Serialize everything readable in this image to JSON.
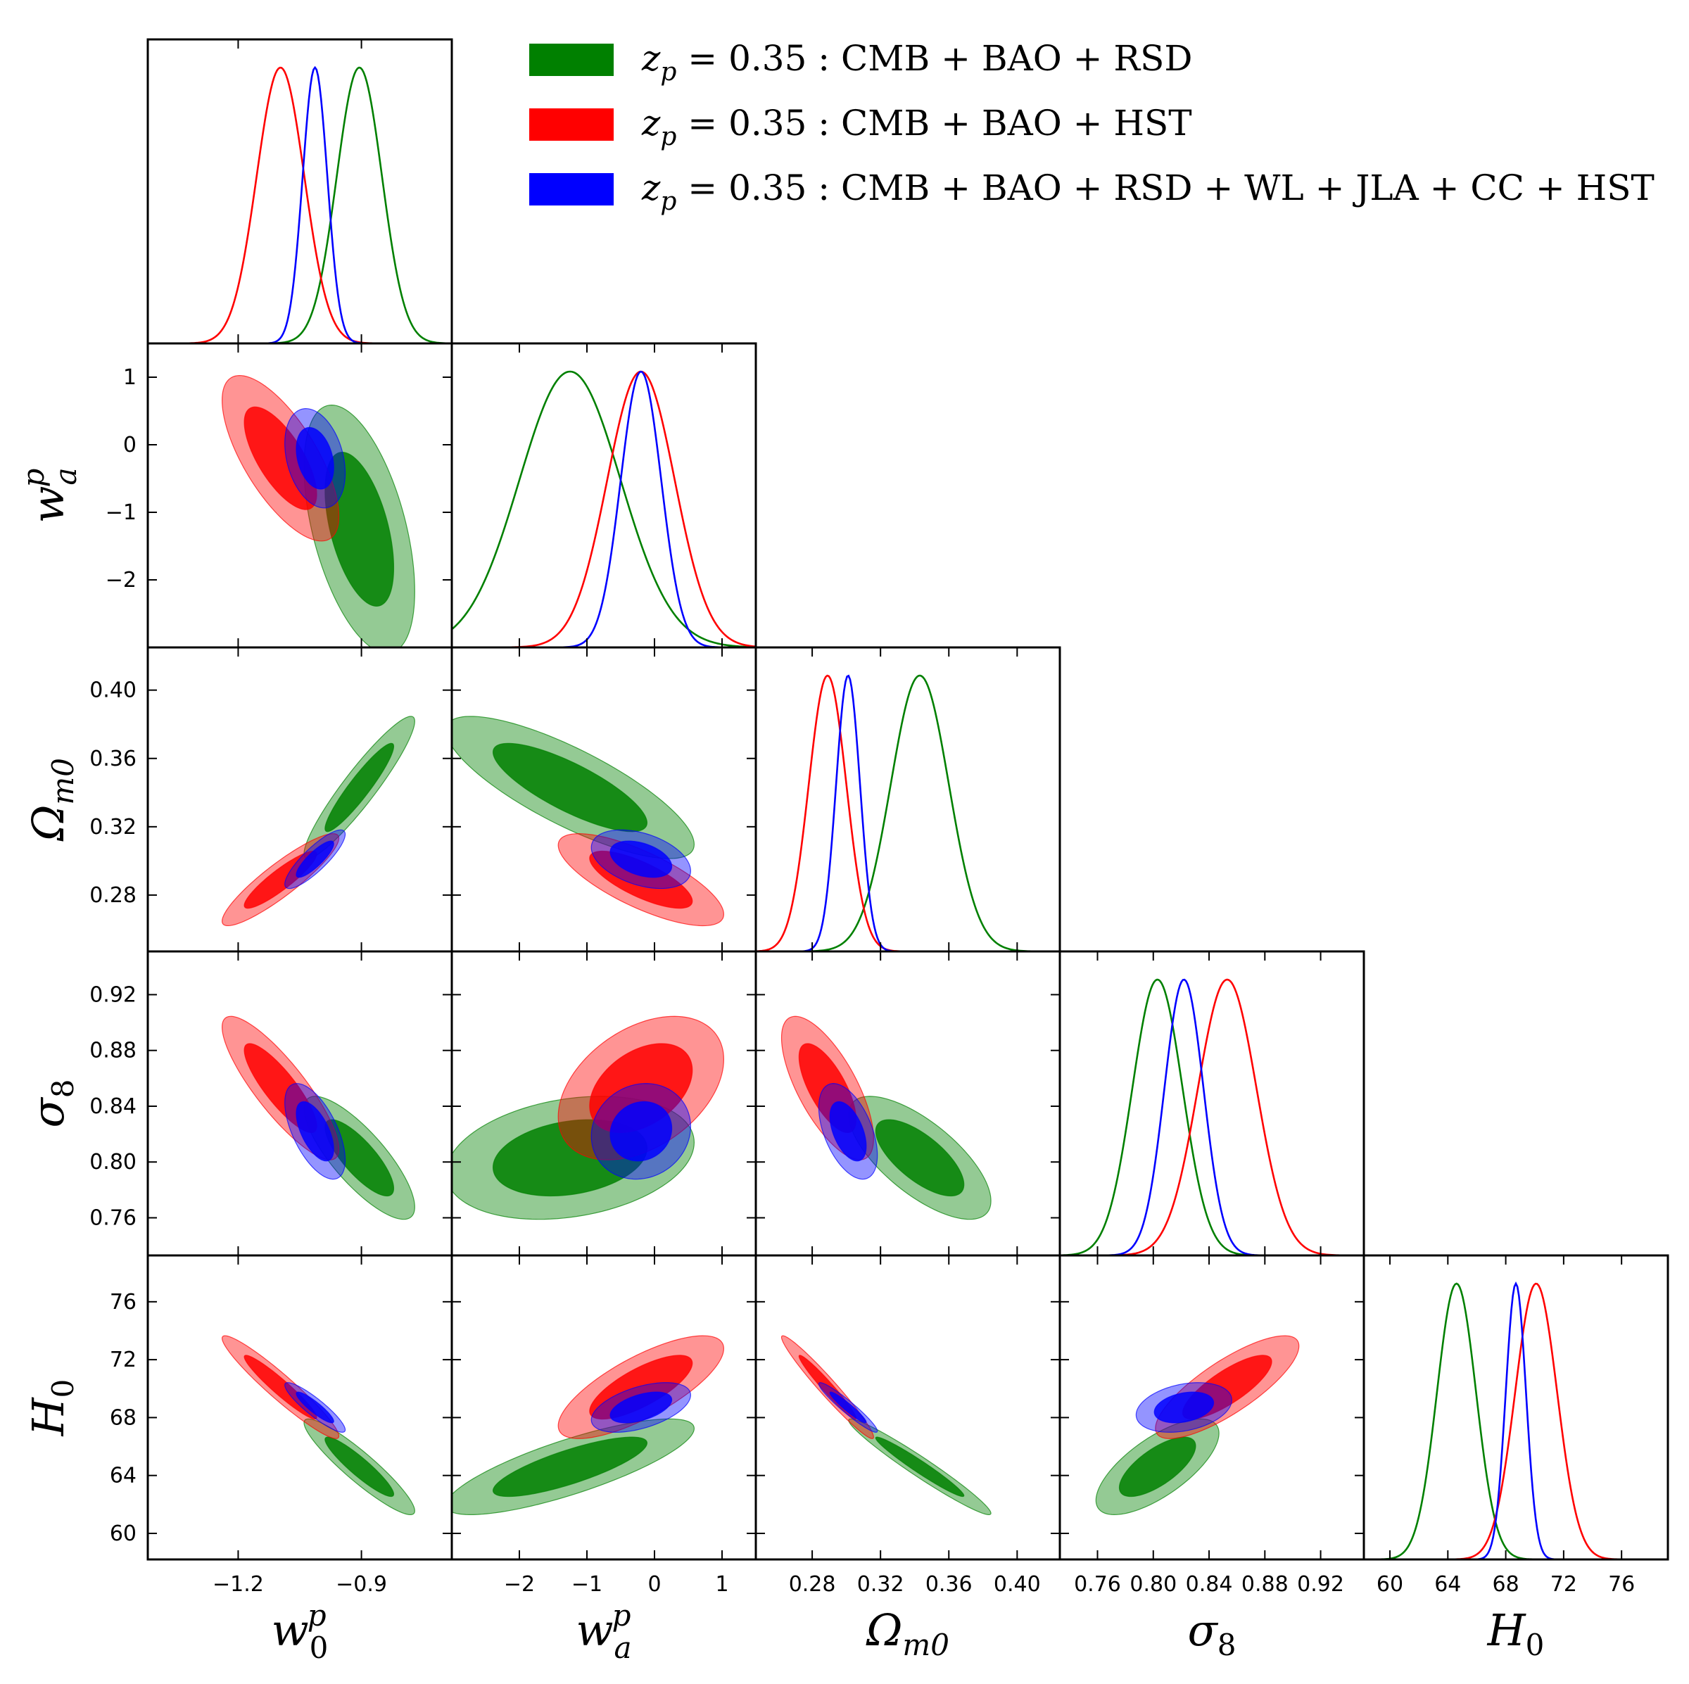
{
  "chart_data": {
    "type": "triangle",
    "title": "",
    "parameters": [
      {
        "id": "w0",
        "label": "w",
        "sub": "0",
        "sup": "p",
        "range": [
          -1.42,
          -0.68
        ],
        "ticks": [
          -1.2,
          -0.9
        ],
        "tick_labels": [
          "−1.2",
          "−0.9"
        ]
      },
      {
        "id": "wa",
        "label": "w",
        "sub": "a",
        "sup": "p",
        "range": [
          -3.0,
          1.5
        ],
        "ticks": [
          -2,
          -1,
          0,
          1
        ],
        "tick_labels": [
          "−2",
          "−1",
          "0",
          "1"
        ]
      },
      {
        "id": "om",
        "label": "Ω",
        "sub": "m0",
        "sup": "",
        "range": [
          0.247,
          0.425
        ],
        "ticks": [
          0.28,
          0.32,
          0.36,
          0.4
        ],
        "tick_labels": [
          "0.28",
          "0.32",
          "0.36",
          "0.40"
        ]
      },
      {
        "id": "s8",
        "label": "σ",
        "sub": "8",
        "sup": "",
        "range": [
          0.733,
          0.951
        ],
        "ticks": [
          0.76,
          0.8,
          0.84,
          0.88,
          0.92
        ],
        "tick_labels": [
          "0.76",
          "0.80",
          "0.84",
          "0.88",
          "0.92"
        ]
      },
      {
        "id": "h0",
        "label": "H",
        "sub": "0",
        "sup": "",
        "range": [
          58.2,
          79.2
        ],
        "ticks": [
          60,
          64,
          68,
          72,
          76
        ],
        "tick_labels": [
          "60",
          "64",
          "68",
          "72",
          "76"
        ]
      }
    ],
    "series": [
      {
        "name": "z_p = 0.35 : CMB + BAO + RSD",
        "legend_prefix": "z",
        "legend_sub": "p",
        "legend_text": " = 0.35 :  CMB + BAO + RSD",
        "color": "#008000",
        "mean": {
          "w0": -0.905,
          "wa": -1.25,
          "om": 0.343,
          "s8": 0.803,
          "h0": 64.6
        },
        "sigma": {
          "w0": 0.055,
          "wa": 0.75,
          "om": 0.017,
          "s8": 0.018,
          "h0": 1.35
        },
        "corr": {
          "w0|wa": -0.5,
          "w0|om": 0.93,
          "wa|om": -0.8,
          "w0|s8": -0.8,
          "wa|s8": 0.25,
          "om|s8": -0.7,
          "w0|h0": -0.92,
          "wa|h0": 0.8,
          "om|h0": -0.97,
          "s8|h0": 0.7
        }
      },
      {
        "name": "z_p = 0.35 : CMB + BAO + HST",
        "legend_prefix": "z",
        "legend_sub": "p",
        "legend_text": " = 0.35 :  CMB + BAO + HST",
        "color": "#ff0000",
        "mean": {
          "w0": -1.097,
          "wa": -0.2,
          "om": 0.289,
          "s8": 0.853,
          "h0": 70.1
        },
        "sigma": {
          "w0": 0.058,
          "wa": 0.5,
          "om": 0.011,
          "s8": 0.021,
          "h0": 1.45
        },
        "corr": {
          "w0|wa": -0.7,
          "w0|om": 0.9,
          "wa|om": -0.75,
          "w0|s8": -0.85,
          "wa|s8": 0.4,
          "om|s8": -0.7,
          "w0|h0": -0.95,
          "wa|h0": 0.75,
          "om|h0": -0.97,
          "s8|h0": 0.8
        }
      },
      {
        "name": "z_p = 0.35 : CMB + BAO + RSD + WL + JLA + CC + HST",
        "legend_prefix": "z",
        "legend_sub": "p",
        "legend_text": " = 0.35 :  CMB + BAO + RSD + WL + JLA + CC + HST",
        "color": "#0000ff",
        "mean": {
          "w0": -1.013,
          "wa": -0.2,
          "om": 0.301,
          "s8": 0.822,
          "h0": 68.7
        },
        "sigma": {
          "w0": 0.03,
          "wa": 0.3,
          "om": 0.007,
          "s8": 0.014,
          "h0": 0.7
        },
        "corr": {
          "w0|wa": -0.3,
          "w0|om": 0.85,
          "wa|om": -0.4,
          "w0|s8": -0.6,
          "wa|s8": 0.1,
          "om|s8": -0.5,
          "w0|h0": -0.9,
          "wa|h0": 0.5,
          "om|h0": -0.95,
          "s8|h0": 0.3
        }
      }
    ],
    "legend": {
      "position": "top-right"
    },
    "contour_levels": [
      "68%",
      "95%"
    ]
  }
}
